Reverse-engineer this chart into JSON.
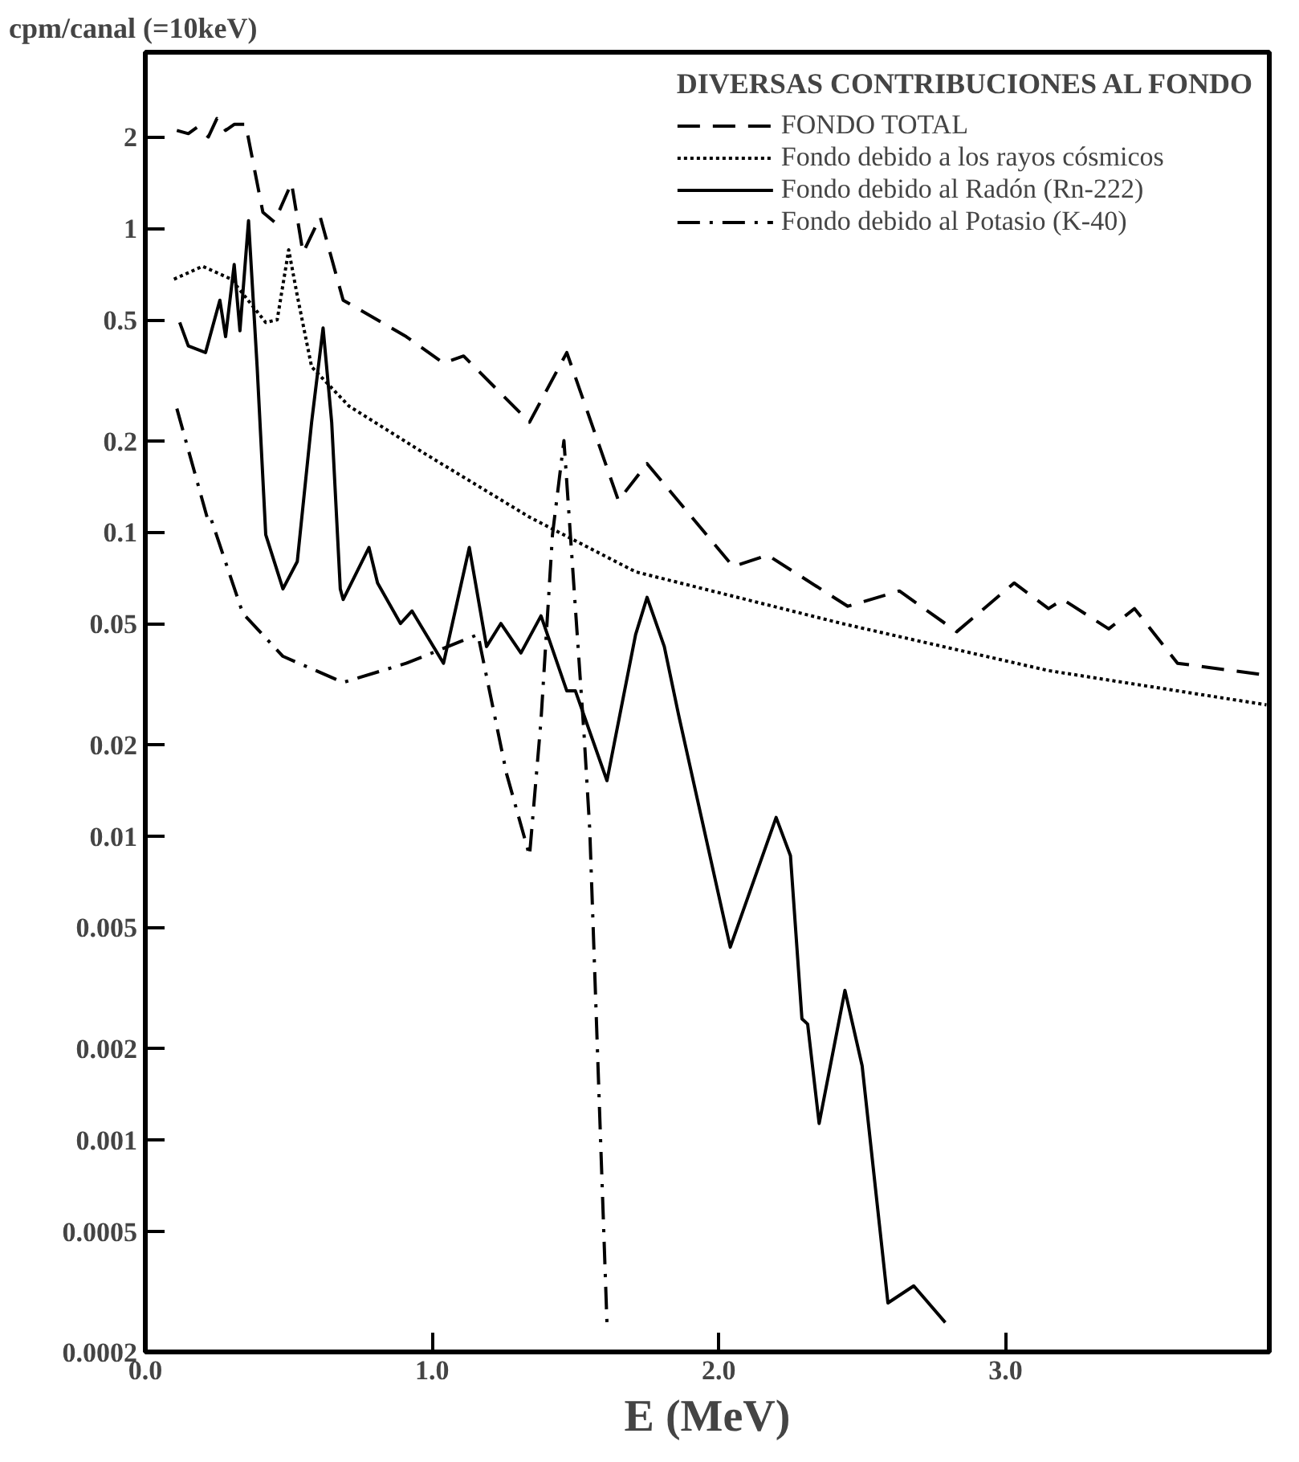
{
  "chart_data": {
    "type": "line",
    "ylabel": "cpm/canal (=10keV)",
    "xlabel": "E (MeV)",
    "legend_title": "DIVERSAS CONTRIBUCIONES AL FONDO",
    "legend": "top right",
    "log": "y",
    "grid": false,
    "marker": "none",
    "xlim": [
      0,
      3.92
    ],
    "xticks": [
      {
        "value": 0,
        "label": "0.0"
      },
      {
        "value": 1,
        "label": "1.0"
      },
      {
        "value": 2,
        "label": "2.0"
      },
      {
        "value": 3,
        "label": "3.0"
      }
    ],
    "ylim": [
      0.0002,
      3.8
    ],
    "yticks": [
      2,
      1,
      0.5,
      0.2,
      0.1,
      0.05,
      0.02,
      0.01,
      0.005,
      0.002,
      0.001,
      0.0005,
      0.0002
    ],
    "series": [
      {
        "name": "FONDO TOTAL",
        "color": "#000000",
        "line_style": "dashed",
        "x": [
          0.11,
          0.15,
          0.18,
          0.22,
          0.25,
          0.28,
          0.31,
          0.35,
          0.41,
          0.45,
          0.51,
          0.55,
          0.61,
          0.69,
          0.91,
          1.04,
          1.11,
          1.34,
          1.47,
          1.65,
          1.75,
          2.05,
          2.17,
          2.45,
          2.63,
          2.83,
          3.03,
          3.15,
          3.2,
          3.36,
          3.45,
          3.6,
          3.89
        ],
        "values": [
          2.1,
          2.05,
          2.15,
          2.0,
          2.3,
          2.1,
          2.2,
          2.2,
          1.13,
          1.05,
          1.41,
          0.83,
          1.09,
          0.58,
          0.44,
          0.36,
          0.38,
          0.23,
          0.39,
          0.127,
          0.168,
          0.077,
          0.084,
          0.057,
          0.064,
          0.047,
          0.068,
          0.056,
          0.06,
          0.048,
          0.056,
          0.037,
          0.034
        ]
      },
      {
        "name": "Fondo debido a los rayos cósmicos",
        "color": "#000000",
        "line_style": "dotted",
        "x": [
          0.1,
          0.2,
          0.3,
          0.42,
          0.46,
          0.5,
          0.53,
          0.58,
          0.71,
          0.98,
          1.34,
          1.71,
          2.43,
          3.15,
          3.91
        ],
        "values": [
          0.68,
          0.75,
          0.68,
          0.49,
          0.5,
          0.85,
          0.6,
          0.35,
          0.26,
          0.18,
          0.112,
          0.074,
          0.05,
          0.035,
          0.027
        ]
      },
      {
        "name": "Fondo debido al Radón (Rn-222)",
        "color": "#000000",
        "line_style": "solid",
        "x": [
          0.12,
          0.15,
          0.21,
          0.26,
          0.28,
          0.31,
          0.33,
          0.36,
          0.39,
          0.42,
          0.48,
          0.53,
          0.58,
          0.62,
          0.65,
          0.68,
          0.69,
          0.78,
          0.81,
          0.89,
          0.93,
          1.04,
          1.13,
          1.19,
          1.24,
          1.31,
          1.38,
          1.47,
          1.5,
          1.61,
          1.71,
          1.75,
          1.81,
          1.86,
          2.04,
          2.2,
          2.25,
          2.29,
          2.31,
          2.35,
          2.44,
          2.5,
          2.59,
          2.68,
          2.79
        ],
        "values": [
          0.49,
          0.41,
          0.39,
          0.58,
          0.44,
          0.76,
          0.46,
          1.06,
          0.35,
          0.098,
          0.065,
          0.08,
          0.23,
          0.47,
          0.23,
          0.065,
          0.06,
          0.089,
          0.068,
          0.05,
          0.055,
          0.037,
          0.089,
          0.042,
          0.05,
          0.04,
          0.053,
          0.03,
          0.03,
          0.0152,
          0.046,
          0.061,
          0.042,
          0.025,
          0.0043,
          0.0115,
          0.0086,
          0.0025,
          0.0024,
          0.00113,
          0.0031,
          0.00175,
          0.00029,
          0.00033,
          0.00025
        ]
      },
      {
        "name": "Fondo debido al Potasio (K-40)",
        "color": "#000000",
        "line_style": "dashdot",
        "x": [
          0.11,
          0.22,
          0.23,
          0.34,
          0.48,
          0.69,
          0.91,
          1.16,
          1.26,
          1.34,
          1.38,
          1.42,
          1.46,
          1.53,
          1.55,
          1.61
        ],
        "values": [
          0.255,
          0.108,
          0.11,
          0.054,
          0.039,
          0.032,
          0.037,
          0.046,
          0.016,
          0.0086,
          0.024,
          0.098,
          0.2,
          0.0217,
          0.0105,
          0.00025
        ]
      }
    ]
  }
}
